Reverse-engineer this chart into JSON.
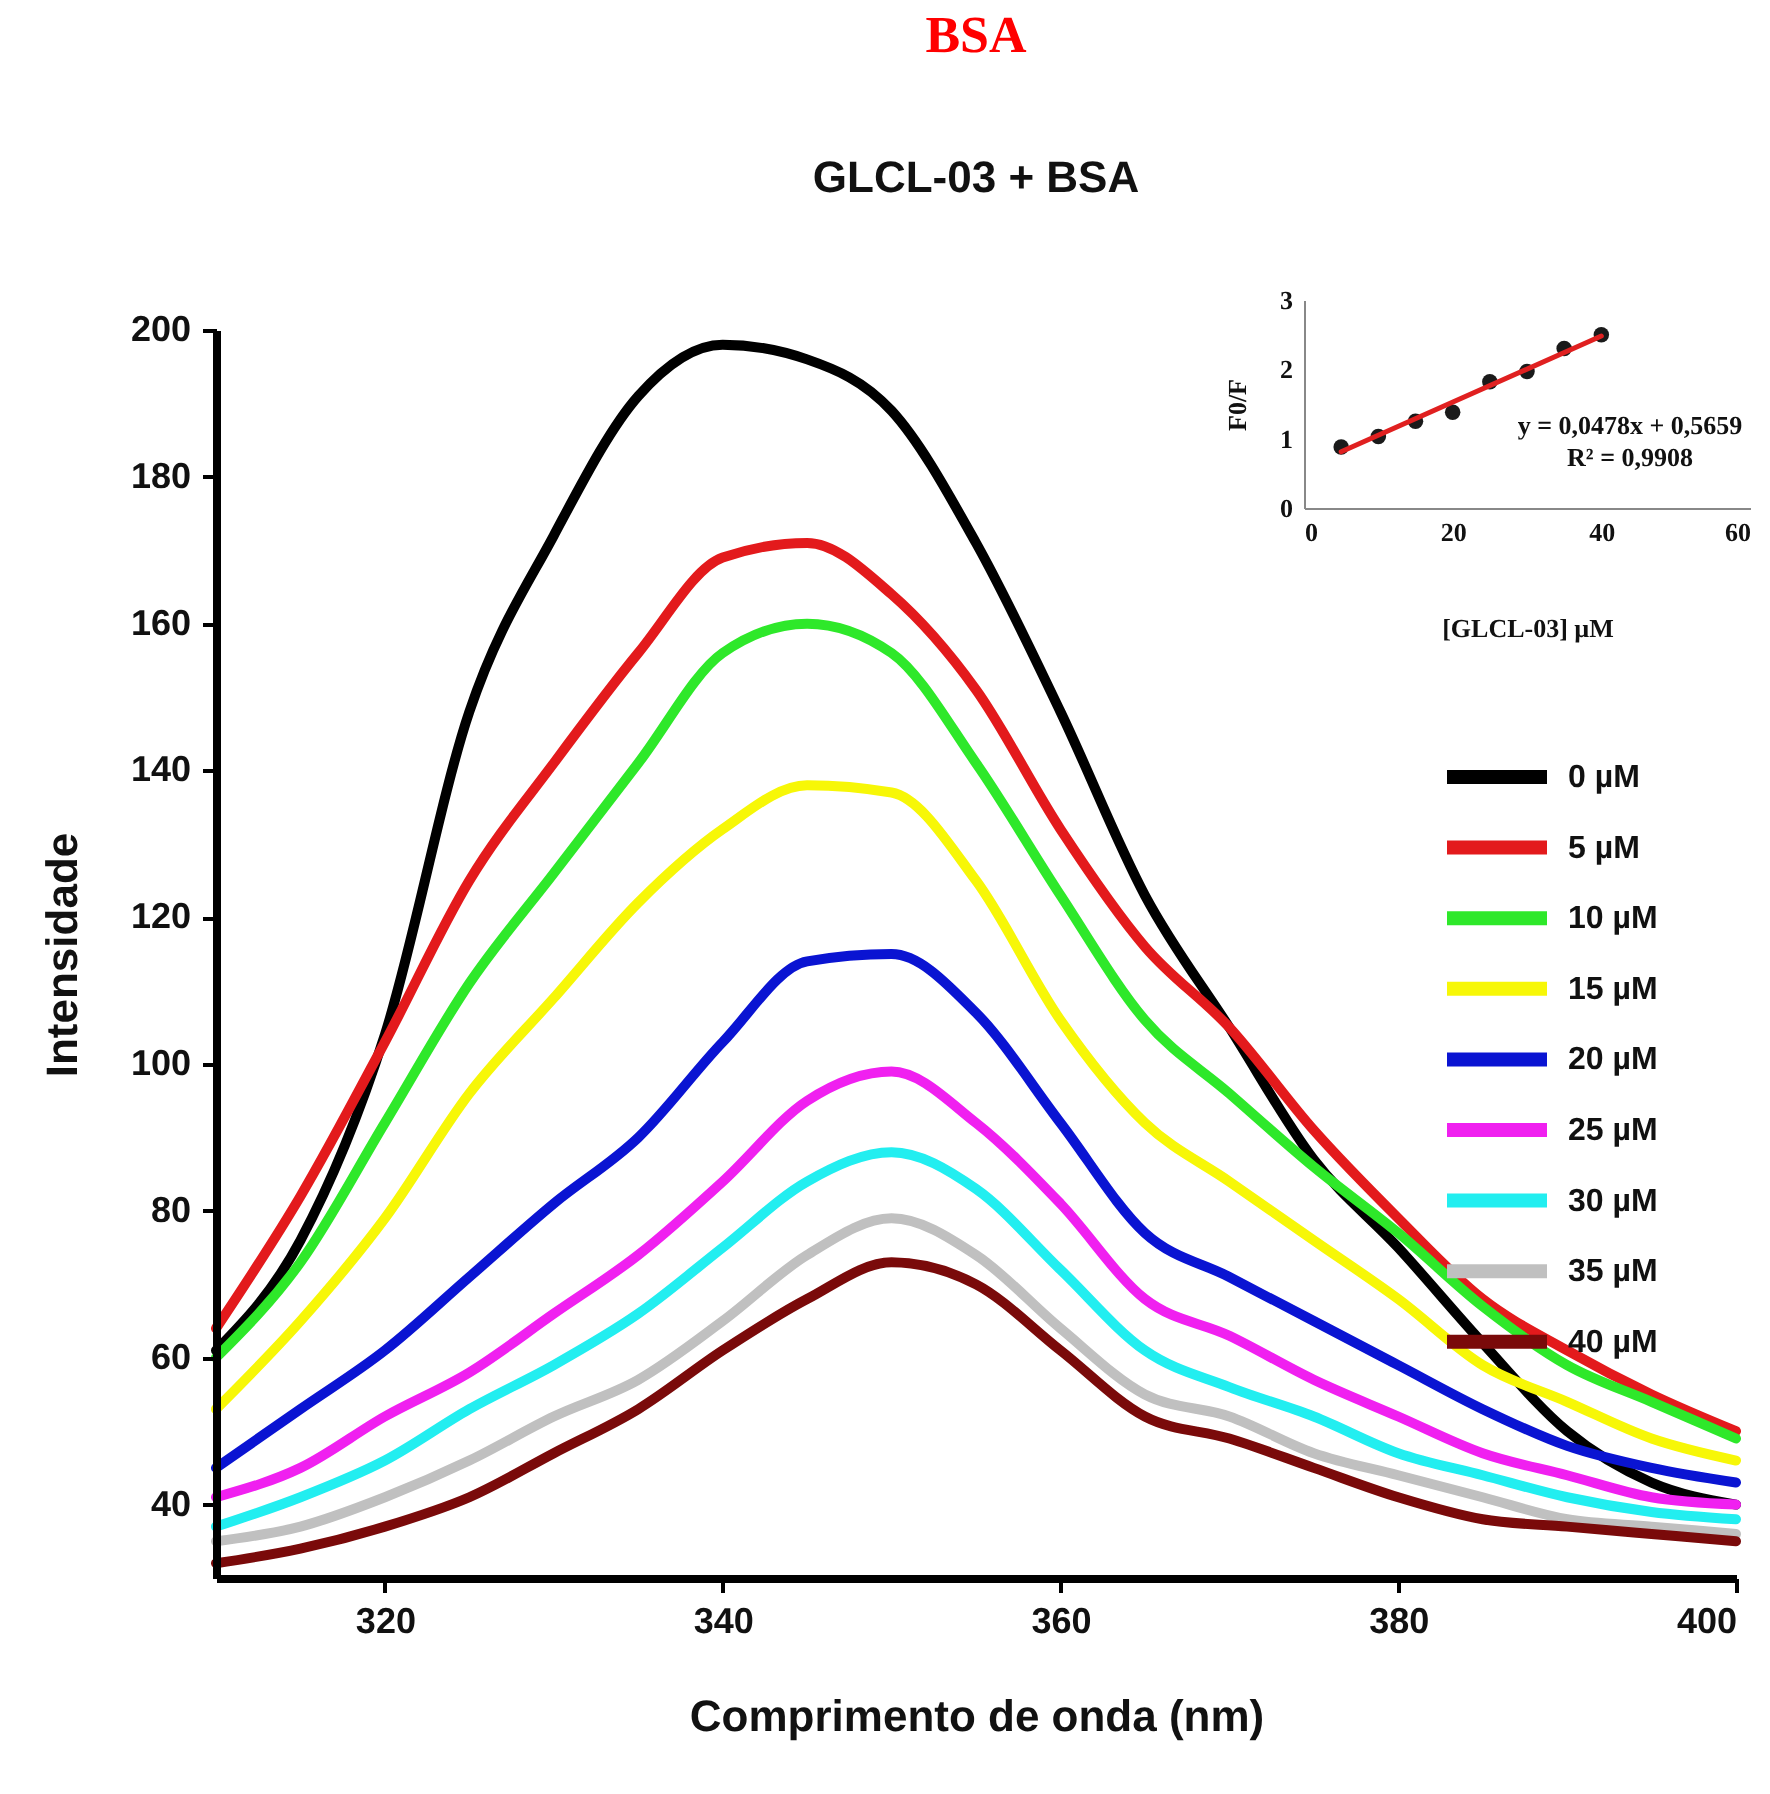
{
  "chart_data": [
    {
      "type": "line",
      "title": "BSA",
      "subtitle": "GLCL-03 + BSA",
      "xlabel": "Comprimento de onda (nm)",
      "ylabel": "Intensidade",
      "x": [
        310,
        315,
        320,
        325,
        330,
        335,
        340,
        345,
        350,
        355,
        360,
        365,
        370,
        375,
        380,
        385,
        390,
        395,
        400
      ],
      "xlim": [
        310,
        400
      ],
      "xticks": [
        320,
        340,
        360,
        380,
        400
      ],
      "ylim": [
        30,
        200
      ],
      "yticks": [
        40,
        60,
        80,
        100,
        120,
        140,
        160,
        180,
        200
      ],
      "legend": "right",
      "series": [
        {
          "name": "0 µM",
          "color": "#000000",
          "values": [
            61,
            76,
            104,
            148,
            172,
            191,
            198,
            196,
            189,
            171,
            148,
            123,
            105,
            87,
            75,
            62,
            50,
            43,
            40
          ]
        },
        {
          "name": "5 µM",
          "color": "#e31a1c",
          "values": [
            64,
            82,
            103,
            125,
            141,
            156,
            169,
            171,
            164,
            151,
            132,
            116,
            105,
            91,
            79,
            68,
            61,
            55,
            50
          ]
        },
        {
          "name": "10 µM",
          "color": "#2ee82a",
          "values": [
            60,
            73,
            92,
            111,
            126,
            141,
            156,
            160,
            156,
            141,
            123,
            106,
            96,
            86,
            77,
            67,
            59,
            54,
            49
          ]
        },
        {
          "name": "15 µM",
          "color": "#f7f707",
          "values": [
            53,
            65,
            79,
            96,
            109,
            122,
            132,
            138,
            137,
            125,
            106,
            92,
            84,
            76,
            68,
            59,
            54,
            49,
            46
          ]
        },
        {
          "name": "20 µM",
          "color": "#0a14d2",
          "values": [
            45,
            53,
            61,
            71,
            81,
            90,
            103,
            114,
            115,
            107,
            92,
            77,
            71,
            65,
            59,
            53,
            48,
            45,
            43
          ]
        },
        {
          "name": "25 µM",
          "color": "#f020f0",
          "values": [
            41,
            45,
            52,
            58,
            66,
            74,
            84,
            95,
            99,
            92,
            81,
            68,
            63,
            57,
            52,
            47,
            44,
            41,
            40
          ]
        },
        {
          "name": "30 µM",
          "color": "#22eef0",
          "values": [
            37,
            41,
            46,
            53,
            59,
            66,
            75,
            84,
            88,
            83,
            72,
            61,
            56,
            52,
            47,
            44,
            41,
            39,
            38
          ]
        },
        {
          "name": "35 µM",
          "color": "#c0c0c0",
          "values": [
            35,
            37,
            41,
            46,
            52,
            57,
            65,
            74,
            79,
            74,
            64,
            55,
            52,
            47,
            44,
            41,
            38,
            37,
            36
          ]
        },
        {
          "name": "40 µM",
          "color": "#7a0a0a",
          "values": [
            32,
            34,
            37,
            41,
            47,
            53,
            61,
            68,
            73,
            70,
            61,
            52,
            49,
            45,
            41,
            38,
            37,
            36,
            35
          ]
        }
      ]
    },
    {
      "type": "scatter",
      "xlabel": "[GLCL-03]  µM",
      "ylabel": "F0/F",
      "x": [
        5,
        10,
        15,
        20,
        25,
        30,
        35,
        40
      ],
      "xlim": [
        0,
        60
      ],
      "xticks": [
        0,
        20,
        40,
        60
      ],
      "ylim": [
        0,
        3
      ],
      "yticks": [
        0,
        1,
        2,
        3
      ],
      "annotations": [
        "y = 0,0478x + 0,5659",
        "R² = 0,9908"
      ],
      "series": [
        {
          "marker": "circle",
          "color": "#1a1a1a",
          "values": [
            0.88,
            1.03,
            1.25,
            1.38,
            1.82,
            1.97,
            2.3,
            2.5
          ]
        },
        {
          "type": "line",
          "color": "#e02020",
          "x": [
            5,
            40
          ],
          "values": [
            0.81,
            2.48
          ]
        }
      ]
    }
  ]
}
